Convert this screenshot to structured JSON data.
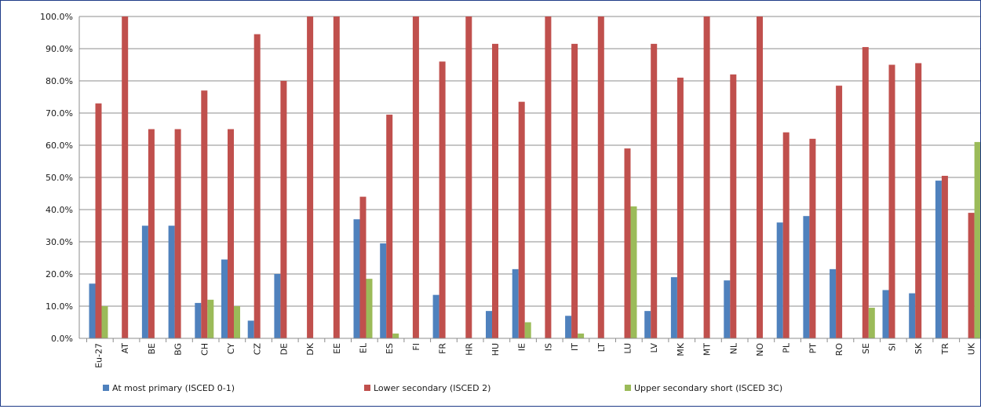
{
  "chart_data": {
    "type": "bar",
    "title": "",
    "xlabel": "",
    "ylabel": "",
    "ylim": [
      0,
      100
    ],
    "y_ticks": [
      "0.0%",
      "10.0%",
      "20.0%",
      "30.0%",
      "40.0%",
      "50.0%",
      "60.0%",
      "70.0%",
      "80.0%",
      "90.0%",
      "100.0%"
    ],
    "grid": true,
    "legend_position": "bottom",
    "categories": [
      "Eu-27",
      "AT",
      "BE",
      "BG",
      "CH",
      "CY",
      "CZ",
      "DE",
      "DK",
      "EE",
      "EL",
      "ES",
      "FI",
      "FR",
      "HR",
      "HU",
      "IE",
      "IS",
      "IT",
      "LT",
      "LU",
      "LV",
      "MK",
      "MT",
      "NL",
      "NO",
      "PL",
      "PT",
      "RO",
      "SE",
      "SI",
      "SK",
      "TR",
      "UK"
    ],
    "series": [
      {
        "name": "At most primary (ISCED 0-1)",
        "color": "#4f81bd",
        "values": [
          17,
          0,
          35,
          35,
          11,
          24.5,
          5.5,
          20,
          0,
          0,
          37,
          29.5,
          0,
          13.5,
          0,
          8.5,
          21.5,
          0,
          7,
          0,
          0,
          8.5,
          19,
          0,
          18,
          0,
          36,
          38,
          21.5,
          0,
          15,
          14,
          49,
          0
        ]
      },
      {
        "name": "Lower secondary (ISCED 2)",
        "color": "#c0504d",
        "values": [
          73,
          100,
          65,
          65,
          77,
          65,
          94.5,
          80,
          100,
          100,
          44,
          69.5,
          100,
          86,
          100,
          91.5,
          73.5,
          100,
          91.5,
          100,
          59,
          91.5,
          81,
          100,
          82,
          100,
          64,
          62,
          78.5,
          90.5,
          85,
          85.5,
          50.5,
          39
        ]
      },
      {
        "name": "Upper secondary short (ISCED 3C)",
        "color": "#9bbb59",
        "values": [
          10,
          0,
          0,
          0,
          12,
          10,
          0,
          0,
          0,
          0,
          18.5,
          1.5,
          0,
          0,
          0,
          0,
          5,
          0,
          1.5,
          0,
          41,
          0,
          0,
          0,
          0,
          0,
          0,
          0,
          0,
          9.5,
          0,
          0,
          0,
          61
        ]
      }
    ]
  }
}
